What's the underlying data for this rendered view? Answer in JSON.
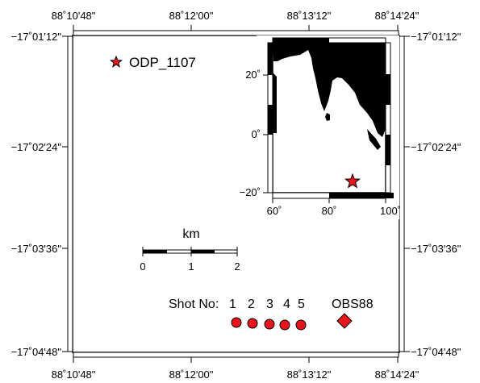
{
  "map": {
    "outer_frame": {
      "lon_ticks": [
        "88˚10'48\"",
        "88˚12'00\"",
        "88˚13'12\"",
        "88˚14'24\""
      ],
      "lat_ticks": [
        "−17˚01'12\"",
        "−17˚02'24\"",
        "−17˚03'36\"",
        "−17˚04'48\""
      ]
    },
    "site_label": "ODP_1107",
    "scale_bar": {
      "unit": "km",
      "ticks": [
        "0",
        "1",
        "2"
      ]
    },
    "shots": {
      "prefix": "Shot No:",
      "numbers": [
        "1",
        "2",
        "3",
        "4",
        "5"
      ],
      "color": "#e8141b"
    },
    "obs": {
      "label": "OBS88",
      "color": "#e8141b"
    },
    "inset": {
      "lat_ticks": [
        "20˚",
        "0˚",
        "−20˚"
      ],
      "lon_ticks": [
        "60˚",
        "80˚",
        "100˚"
      ],
      "land_color": "#000000",
      "marker_color": "#e8141b"
    }
  }
}
